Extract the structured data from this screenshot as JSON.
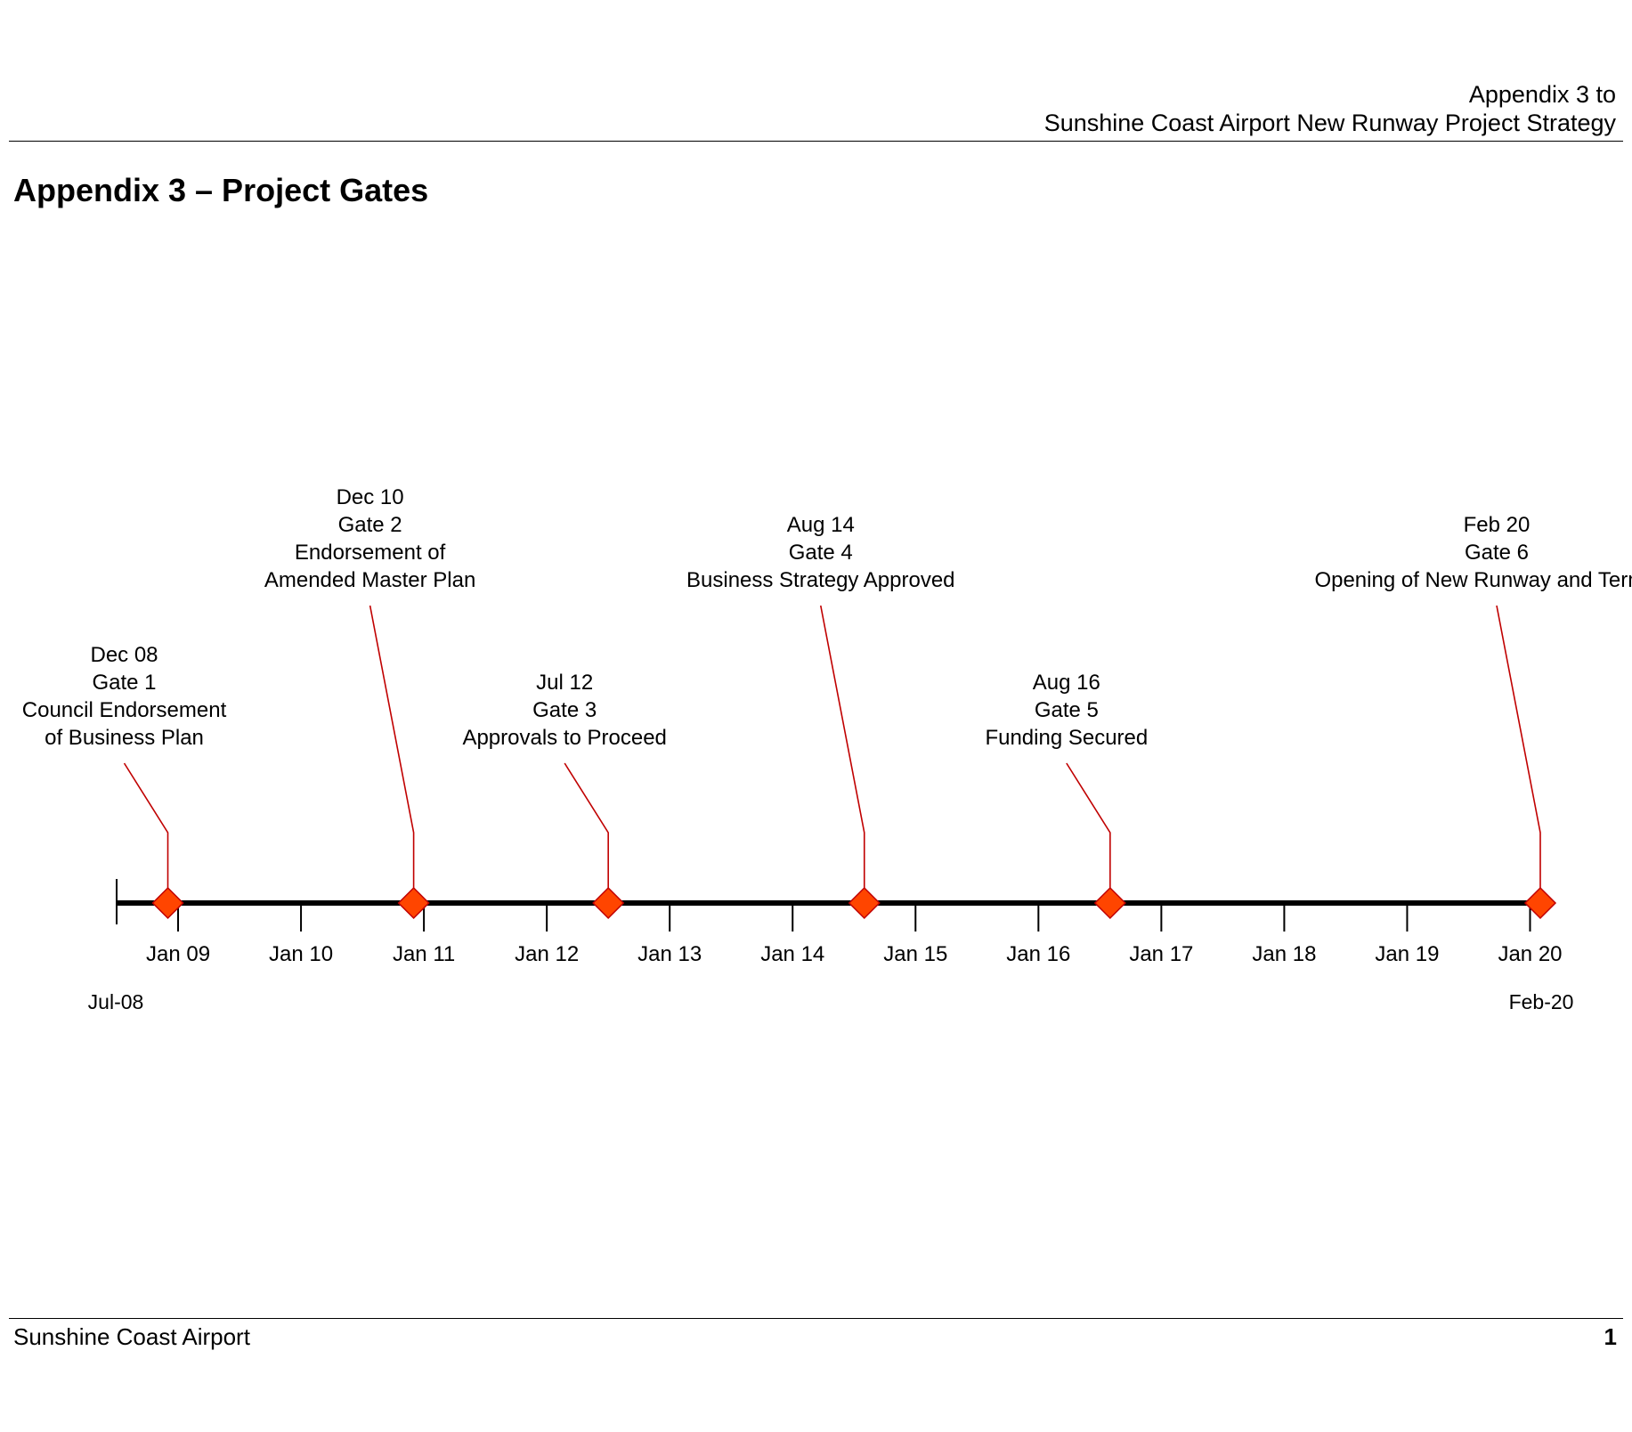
{
  "header": {
    "line1": "Appendix 3 to",
    "line2": "Sunshine Coast Airport New Runway Project Strategy"
  },
  "page_title": "Appendix 3 – Project Gates",
  "footer": {
    "left": "Sunshine Coast Airport",
    "page_number": "1"
  },
  "timeline": {
    "start_label": "Jul-08",
    "end_label": "Feb-20",
    "ticks": [
      "Jan 09",
      "Jan 10",
      "Jan 11",
      "Jan 12",
      "Jan 13",
      "Jan 14",
      "Jan 15",
      "Jan 16",
      "Jan 17",
      "Jan 18",
      "Jan 19",
      "Jan 20"
    ],
    "marker_color": "#ff4500",
    "marker_border_color": "#c00000",
    "leader_color": "#c00000",
    "axis_color": "#000000",
    "milestones": [
      {
        "date": "Dec 08",
        "gate": "Gate 1",
        "description": [
          "Council Endorsement",
          "of Business Plan"
        ]
      },
      {
        "date": "Dec 10",
        "gate": "Gate 2",
        "description": [
          "Endorsement of",
          "Amended Master Plan"
        ]
      },
      {
        "date": "Jul 12",
        "gate": "Gate 3",
        "description": [
          "Approvals to Proceed"
        ]
      },
      {
        "date": "Aug 14",
        "gate": "Gate 4",
        "description": [
          "Business Strategy Approved"
        ]
      },
      {
        "date": "Aug 16",
        "gate": "Gate 5",
        "description": [
          "Funding Secured"
        ]
      },
      {
        "date": "Feb 20",
        "gate": "Gate 6",
        "description": [
          "Opening of New Runway and Terminal"
        ]
      }
    ]
  }
}
